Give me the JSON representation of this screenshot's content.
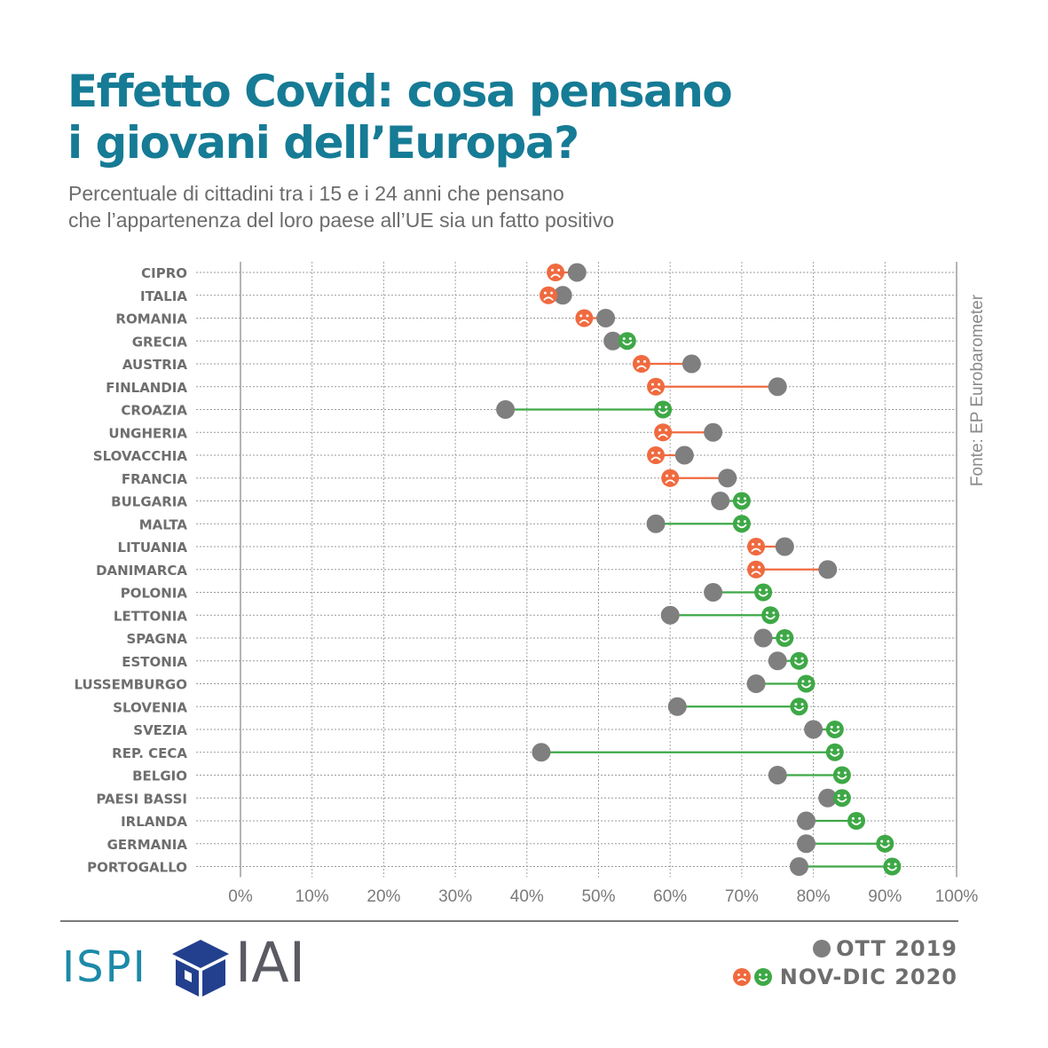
{
  "title": {
    "line1": "Effetto Covid: cosa pensano",
    "line2": "i giovani dell’Europa?"
  },
  "subtitle": {
    "line1": "Percentuale di cittadini tra i 15 e i 24 anni che pensano",
    "line2": "che l’appartenenza del loro paese all’UE sia un fatto positivo"
  },
  "source": "Fonte: EP Eurobarometer",
  "logos": {
    "ispi": "ISPI",
    "iai": "IAI"
  },
  "legend": {
    "oct2019": "OTT 2019",
    "novdec2020": "NOV-DIC 2020"
  },
  "colors": {
    "title": "#167b95",
    "gray_dot": "#7f7f7f",
    "negative": "#f06a3f",
    "positive": "#3ea846",
    "grid": "#9a9a9a"
  },
  "icons": {
    "negative": "frown-face-icon",
    "positive": "smile-face-icon"
  },
  "chart_data": {
    "type": "dumbbell",
    "xlim": [
      0,
      100
    ],
    "xticks": [
      "0%",
      "10%",
      "20%",
      "30%",
      "40%",
      "50%",
      "60%",
      "70%",
      "80%",
      "90%",
      "100%"
    ],
    "series": [
      {
        "name": "OTT 2019",
        "key": "oct2019"
      },
      {
        "name": "NOV-DIC 2020",
        "key": "nd2020"
      }
    ],
    "countries": [
      {
        "name": "CIPRO",
        "oct2019": 47,
        "nd2020": 44
      },
      {
        "name": "ITALIA",
        "oct2019": 45,
        "nd2020": 43
      },
      {
        "name": "ROMANIA",
        "oct2019": 51,
        "nd2020": 48
      },
      {
        "name": "GRECIA",
        "oct2019": 52,
        "nd2020": 54
      },
      {
        "name": "AUSTRIA",
        "oct2019": 63,
        "nd2020": 56
      },
      {
        "name": "FINLANDIA",
        "oct2019": 75,
        "nd2020": 58
      },
      {
        "name": "CROAZIA",
        "oct2019": 37,
        "nd2020": 59
      },
      {
        "name": "UNGHERIA",
        "oct2019": 66,
        "nd2020": 59
      },
      {
        "name": "SLOVACCHIA",
        "oct2019": 62,
        "nd2020": 58
      },
      {
        "name": "FRANCIA",
        "oct2019": 68,
        "nd2020": 60
      },
      {
        "name": "BULGARIA",
        "oct2019": 67,
        "nd2020": 70
      },
      {
        "name": "MALTA",
        "oct2019": 58,
        "nd2020": 70
      },
      {
        "name": "LITUANIA",
        "oct2019": 76,
        "nd2020": 72
      },
      {
        "name": "DANIMARCA",
        "oct2019": 82,
        "nd2020": 72
      },
      {
        "name": "POLONIA",
        "oct2019": 66,
        "nd2020": 73
      },
      {
        "name": "LETTONIA",
        "oct2019": 60,
        "nd2020": 74
      },
      {
        "name": "SPAGNA",
        "oct2019": 73,
        "nd2020": 76
      },
      {
        "name": "ESTONIA",
        "oct2019": 75,
        "nd2020": 78
      },
      {
        "name": "LUSSEMBURGO",
        "oct2019": 72,
        "nd2020": 79
      },
      {
        "name": "SLOVENIA",
        "oct2019": 61,
        "nd2020": 78
      },
      {
        "name": "SVEZIA",
        "oct2019": 80,
        "nd2020": 83
      },
      {
        "name": "REP. CECA",
        "oct2019": 42,
        "nd2020": 83
      },
      {
        "name": "BELGIO",
        "oct2019": 75,
        "nd2020": 84
      },
      {
        "name": "PAESI BASSI",
        "oct2019": 82,
        "nd2020": 84
      },
      {
        "name": "IRLANDA",
        "oct2019": 79,
        "nd2020": 86
      },
      {
        "name": "GERMANIA",
        "oct2019": 79,
        "nd2020": 90
      },
      {
        "name": "PORTOGALLO",
        "oct2019": 78,
        "nd2020": 91
      }
    ]
  }
}
